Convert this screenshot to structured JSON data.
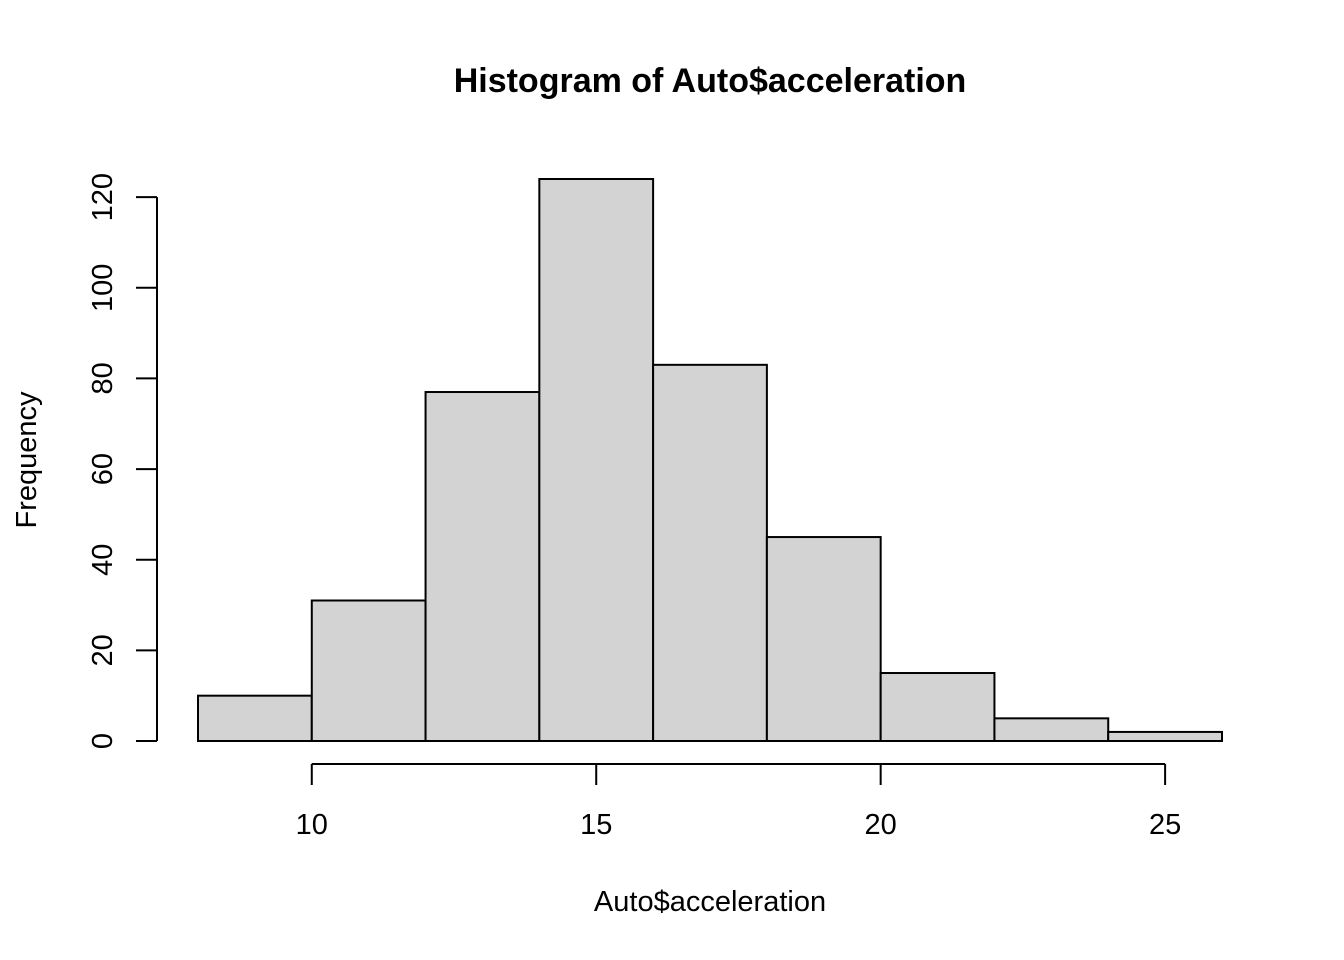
{
  "chart_data": {
    "type": "bar",
    "title": "Histogram of Auto$acceleration",
    "xlabel": "Auto$acceleration",
    "ylabel": "Frequency",
    "bins": [
      {
        "from": 8,
        "to": 10,
        "count": 10
      },
      {
        "from": 10,
        "to": 12,
        "count": 31
      },
      {
        "from": 12,
        "to": 14,
        "count": 77
      },
      {
        "from": 14,
        "to": 16,
        "count": 124
      },
      {
        "from": 16,
        "to": 18,
        "count": 83
      },
      {
        "from": 18,
        "to": 20,
        "count": 45
      },
      {
        "from": 20,
        "to": 22,
        "count": 15
      },
      {
        "from": 22,
        "to": 24,
        "count": 5
      },
      {
        "from": 24,
        "to": 26,
        "count": 2
      }
    ],
    "xlim": [
      8,
      26
    ],
    "ylim": [
      0,
      124
    ],
    "xticks": [
      10,
      15,
      20,
      25
    ],
    "yticks": [
      0,
      20,
      40,
      60,
      80,
      100,
      120
    ],
    "grid": false,
    "bar_color": "#d3d3d3",
    "edge_color": "#000000"
  }
}
